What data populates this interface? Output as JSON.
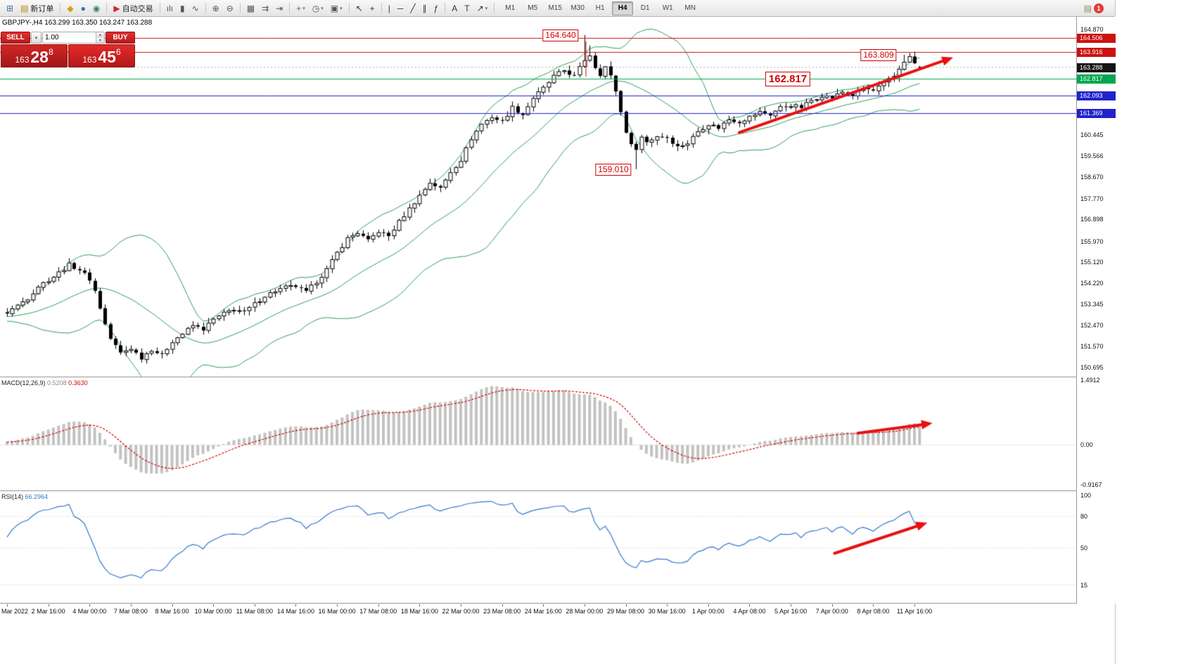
{
  "icons": {
    "dropdown": "▾",
    "spin_up": "▴",
    "spin_down": "▾"
  },
  "toolbar": {
    "groups": [
      {
        "items": [
          {
            "name": "new-chart-button",
            "glyph": "⊞",
            "color": "#4a6fa5"
          },
          {
            "name": "new-order-button",
            "glyph": "▤",
            "color": "#b8860b",
            "label": "新订单"
          }
        ]
      },
      {
        "items": [
          {
            "name": "profiles-button",
            "glyph": "◆",
            "color": "#d4a017"
          },
          {
            "name": "market-watch-button",
            "glyph": "●",
            "color": "#2f6fb5"
          },
          {
            "name": "navigator-button",
            "glyph": "◉",
            "color": "#2e8b57"
          }
        ]
      },
      {
        "items": [
          {
            "name": "autotrade-button",
            "glyph": "▶",
            "color": "#cc2a2a",
            "label": "自动交易"
          }
        ]
      },
      {
        "items": [
          {
            "name": "bar-chart-type-button",
            "glyph": "ılı",
            "color": "#555555"
          },
          {
            "name": "candlestick-type-button",
            "glyph": "▮",
            "color": "#555555"
          },
          {
            "name": "line-chart-type-button",
            "glyph": "∿",
            "color": "#555555"
          }
        ]
      },
      {
        "items": [
          {
            "name": "zoom-in-button",
            "glyph": "⊕",
            "color": "#555555"
          },
          {
            "name": "zoom-out-button",
            "glyph": "⊖",
            "color": "#555555"
          }
        ]
      },
      {
        "items": [
          {
            "name": "tile-windows-button",
            "glyph": "▦",
            "color": "#555555"
          },
          {
            "name": "auto-scroll-button",
            "glyph": "⇉",
            "color": "#555555"
          },
          {
            "name": "chart-shift-button",
            "glyph": "⇥",
            "color": "#555555"
          }
        ]
      },
      {
        "items": [
          {
            "name": "indicators-button",
            "glyph": "+",
            "color": "#2e8b2e",
            "dropdown": true
          },
          {
            "name": "periods-button",
            "glyph": "◷",
            "color": "#555555",
            "dropdown": true
          },
          {
            "name": "templates-button",
            "glyph": "▣",
            "color": "#555555",
            "dropdown": true
          }
        ]
      },
      {
        "items": [
          {
            "name": "cursor-button",
            "glyph": "↖",
            "color": "#333333"
          },
          {
            "name": "crosshair-button",
            "glyph": "+",
            "color": "#333333"
          }
        ]
      },
      {
        "items": [
          {
            "name": "vertical-line-button",
            "glyph": "|",
            "color": "#333333"
          },
          {
            "name": "horizontal-line-button",
            "glyph": "─",
            "color": "#333333"
          },
          {
            "name": "trendline-button",
            "glyph": "╱",
            "color": "#333333"
          },
          {
            "name": "equidistant-channel-button",
            "glyph": "∥",
            "color": "#333333"
          },
          {
            "name": "fibonacci-button",
            "glyph": "ƒ",
            "color": "#333333"
          }
        ]
      },
      {
        "items": [
          {
            "name": "text-button",
            "glyph": "A",
            "color": "#333333"
          },
          {
            "name": "text-label-button",
            "glyph": "T",
            "color": "#333333"
          },
          {
            "name": "arrow-tools-button",
            "glyph": "↗",
            "color": "#333333",
            "dropdown": true
          }
        ]
      }
    ],
    "timeframes": [
      "M1",
      "M5",
      "M15",
      "M30",
      "H1",
      "H4",
      "D1",
      "W1",
      "MN"
    ],
    "active_timeframe": "H4",
    "notifications": {
      "glyph": "▤",
      "badge": "1"
    }
  },
  "chart": {
    "symbol_line": "GBPJPY-,H4  163.299 163.350 163.247 163.288",
    "quick_trade": {
      "sell_label": "SELL",
      "buy_label": "BUY",
      "volume": "1.00",
      "sell_price": {
        "big": "163",
        "pips": "28",
        "pip_sup": "8"
      },
      "buy_price": {
        "big": "163",
        "pips": "45",
        "pip_sup": "6"
      }
    }
  },
  "chart_data": [
    {
      "type": "candlestick",
      "symbol": "GBPJPY-",
      "period": "H4",
      "current_ohlc": {
        "open": 163.299,
        "high": 163.35,
        "low": 163.247,
        "close": 163.288
      },
      "bars_total": 178,
      "bars_per_label": 8,
      "ylim": [
        150.31,
        165.43
      ],
      "price_keyframes": [
        [
          0,
          153.0
        ],
        [
          2,
          153.3
        ],
        [
          4,
          153.6
        ],
        [
          6,
          154.1
        ],
        [
          9,
          154.5
        ],
        [
          12,
          155.0
        ],
        [
          14,
          154.8
        ],
        [
          16,
          154.4
        ],
        [
          17,
          153.9
        ],
        [
          18,
          153.2
        ],
        [
          19,
          152.5
        ],
        [
          20,
          151.9
        ],
        [
          21,
          151.6
        ],
        [
          22,
          151.3
        ],
        [
          24,
          151.5
        ],
        [
          26,
          151.1
        ],
        [
          28,
          151.45
        ],
        [
          30,
          151.2
        ],
        [
          32,
          151.8
        ],
        [
          34,
          152.1
        ],
        [
          36,
          152.45
        ],
        [
          38,
          152.3
        ],
        [
          40,
          152.7
        ],
        [
          42,
          152.95
        ],
        [
          44,
          153.15
        ],
        [
          46,
          153.0
        ],
        [
          48,
          153.35
        ],
        [
          50,
          153.7
        ],
        [
          52,
          153.9
        ],
        [
          54,
          154.05
        ],
        [
          56,
          154.1
        ],
        [
          58,
          153.85
        ],
        [
          60,
          154.3
        ],
        [
          62,
          154.8
        ],
        [
          64,
          155.5
        ],
        [
          66,
          156.1
        ],
        [
          68,
          156.35
        ],
        [
          70,
          156.0
        ],
        [
          72,
          156.4
        ],
        [
          74,
          156.2
        ],
        [
          76,
          156.8
        ],
        [
          78,
          157.35
        ],
        [
          80,
          157.9
        ],
        [
          82,
          158.45
        ],
        [
          84,
          158.2
        ],
        [
          86,
          158.9
        ],
        [
          88,
          159.4
        ],
        [
          90,
          160.3
        ],
        [
          92,
          160.9
        ],
        [
          94,
          161.2
        ],
        [
          96,
          161.0
        ],
        [
          98,
          161.6
        ],
        [
          100,
          161.3
        ],
        [
          102,
          162.0
        ],
        [
          104,
          162.4
        ],
        [
          106,
          162.9
        ],
        [
          108,
          163.15
        ],
        [
          110,
          162.9
        ],
        [
          112,
          163.6
        ],
        [
          113,
          163.8
        ],
        [
          114,
          163.3
        ],
        [
          115,
          163.0
        ],
        [
          116,
          163.3
        ],
        [
          117,
          162.9
        ],
        [
          118,
          162.3
        ],
        [
          119,
          161.4
        ],
        [
          120,
          160.6
        ],
        [
          121,
          160.0
        ],
        [
          122,
          159.9
        ],
        [
          123,
          160.35
        ],
        [
          124,
          160.15
        ],
        [
          126,
          160.4
        ],
        [
          128,
          160.35
        ],
        [
          130,
          159.95
        ],
        [
          132,
          160.1
        ],
        [
          134,
          160.6
        ],
        [
          136,
          160.9
        ],
        [
          138,
          160.75
        ],
        [
          140,
          161.1
        ],
        [
          142,
          161.0
        ],
        [
          144,
          161.2
        ],
        [
          146,
          161.4
        ],
        [
          148,
          161.3
        ],
        [
          150,
          161.6
        ],
        [
          152,
          161.7
        ],
        [
          154,
          161.6
        ],
        [
          156,
          161.9
        ],
        [
          158,
          162.1
        ],
        [
          160,
          162.0
        ],
        [
          162,
          162.25
        ],
        [
          164,
          162.1
        ],
        [
          166,
          162.4
        ],
        [
          168,
          162.3
        ],
        [
          170,
          162.6
        ],
        [
          172,
          162.9
        ],
        [
          174,
          163.55
        ],
        [
          175,
          163.7
        ],
        [
          176,
          163.45
        ],
        [
          177,
          163.288
        ]
      ],
      "bar_overrides": {
        "112": {
          "high": 164.64
        },
        "113": {
          "high": 164.2
        },
        "122": {
          "low": 159.01
        },
        "174": {
          "high": 163.809
        },
        "175": {
          "high": 163.88
        },
        "177": {
          "open": 163.299,
          "high": 163.35,
          "low": 163.247,
          "close": 163.288
        }
      },
      "indicators": [
        {
          "name": "Bollinger Bands",
          "period": 20,
          "deviation": 2,
          "color": "#2e9e55"
        }
      ],
      "horizontal_lines": [
        {
          "price": 164.506,
          "color": "#cc1111"
        },
        {
          "price": 163.916,
          "color": "#cc1111"
        },
        {
          "price": 162.817,
          "color": "#00a651"
        },
        {
          "price": 162.093,
          "color": "#2222cc"
        },
        {
          "price": 161.369,
          "color": "#2222cc"
        }
      ],
      "current_price_badge": {
        "price": 163.288,
        "color": "#141414"
      },
      "y_axis_ticks": [
        "164.870",
        "160.445",
        "159.566",
        "158.670",
        "157.770",
        "156.898",
        "155.970",
        "155.120",
        "154.220",
        "153.345",
        "152.470",
        "151.570",
        "150.695"
      ],
      "x_axis_labels": [
        "Mar 2022",
        "2 Mar 16:00",
        "4 Mar 00:00",
        "7 Mar 08:00",
        "8 Mar 16:00",
        "10 Mar 00:00",
        "11 Mar 08:00",
        "14 Mar 16:00",
        "16 Mar 00:00",
        "17 Mar 08:00",
        "18 Mar 16:00",
        "22 Mar 00:00",
        "23 Mar 08:00",
        "24 Mar 16:00",
        "28 Mar 00:00",
        "29 Mar 08:00",
        "30 Mar 16:00",
        "1 Apr 00:00",
        "4 Apr 08:00",
        "5 Apr 16:00",
        "7 Apr 00:00",
        "8 Apr 08:00",
        "11 Apr 16:00"
      ],
      "annotations": [
        {
          "text": "164.640",
          "price": 164.64,
          "x": 797,
          "leader": {
            "x": 833,
            "y2": 86
          }
        },
        {
          "text": "163.809",
          "price": 163.809,
          "x": 1249
        },
        {
          "text": "162.817",
          "price": 162.817,
          "x": 1120,
          "large": true
        },
        {
          "text": "159.010",
          "price": 159.01,
          "x": 872
        }
      ],
      "trend_arrow": {
        "from_bar": 142,
        "from_price": 160.55,
        "to_bar": 183.5,
        "to_price": 163.7,
        "color": "#e81010"
      }
    },
    {
      "type": "macd",
      "label": {
        "name": "MACD(12,26,9)",
        "values": [
          "0.5208",
          "0.3630"
        ]
      },
      "params": {
        "fast": 12,
        "slow": 26,
        "signal": 9
      },
      "ylim": [
        -1.046,
        1.556
      ],
      "histogram_color": "#c2c2c2",
      "signal_color": "#cc0000",
      "y_axis_ticks": [
        {
          "value": 1.4912,
          "text": "1.4912"
        },
        {
          "value": 0,
          "text": "0.00"
        },
        {
          "value": -0.9167,
          "text": "-0.9167"
        }
      ],
      "trend_arrow": {
        "from_bar": 165,
        "from_value": 0.27,
        "to_bar": 179.5,
        "to_value": 0.5
      }
    },
    {
      "type": "rsi",
      "label": {
        "name": "RSI(14)",
        "value": "66.2964"
      },
      "period": 14,
      "ylim": [
        -2,
        104
      ],
      "levels": [
        80,
        50,
        15
      ],
      "line_color": "#3377cc",
      "y_axis_ticks": [
        {
          "value": 100,
          "text": "100"
        },
        {
          "value": 80,
          "text": "80"
        },
        {
          "value": 50,
          "text": "50"
        },
        {
          "value": 15,
          "text": "15"
        }
      ],
      "trend_arrow": {
        "from_bar": 160.5,
        "from_value": 45,
        "to_bar": 178.5,
        "to_value": 74
      }
    }
  ]
}
